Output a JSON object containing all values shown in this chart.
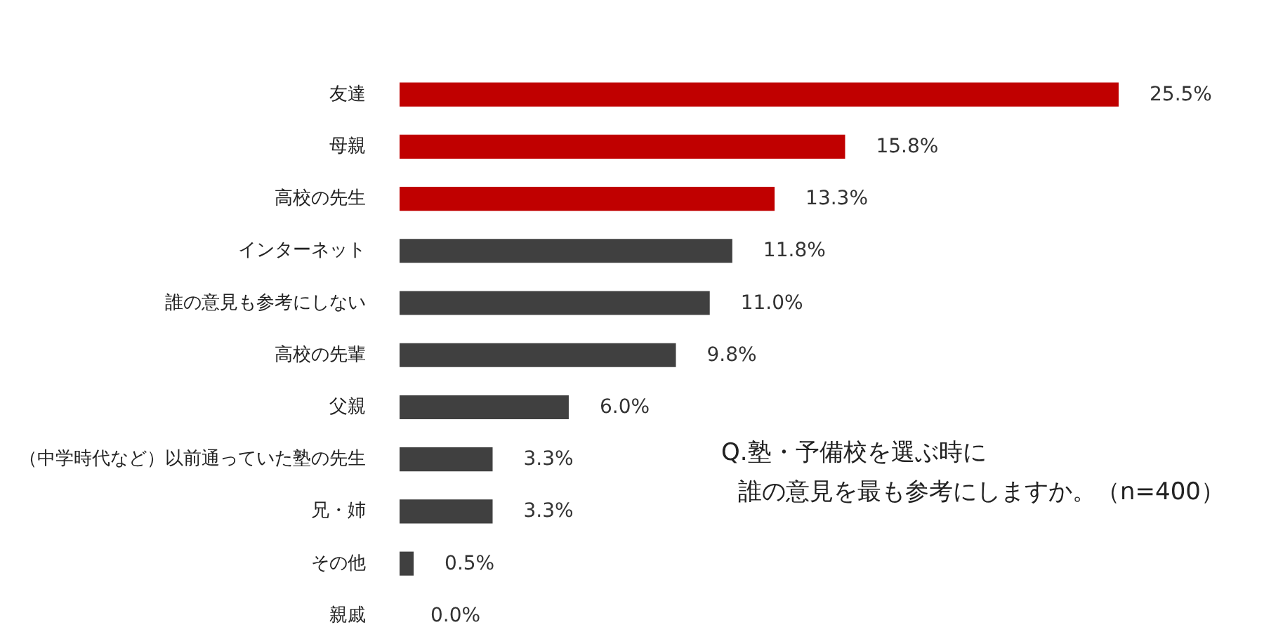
{
  "chart_data": {
    "type": "bar",
    "orientation": "horizontal",
    "categories": [
      "友達",
      "母親",
      "高校の先生",
      "インターネット",
      "誰の意見も参考にしない",
      "高校の先輩",
      "父親",
      "（中学時代など）以前通っていた塾の先生",
      "兄・姉",
      "その他",
      "親戚"
    ],
    "values": [
      25.5,
      15.8,
      13.3,
      11.8,
      11.0,
      9.8,
      6.0,
      3.3,
      3.3,
      0.5,
      0.0
    ],
    "colors": [
      "#c00000",
      "#c00000",
      "#c00000",
      "#404040",
      "#404040",
      "#404040",
      "#404040",
      "#404040",
      "#404040",
      "#404040",
      "#404040"
    ],
    "value_labels": [
      "25.5%",
      "15.8%",
      "13.3%",
      "11.8%",
      "11.0%",
      "9.8%",
      "6.0%",
      "3.3%",
      "3.3%",
      "0.5%",
      "0.0%"
    ],
    "annotations": [
      "Q.塾・予備校を選ぶ時に",
      "誰の意見を最も参考にしますか。（n=400）"
    ]
  }
}
